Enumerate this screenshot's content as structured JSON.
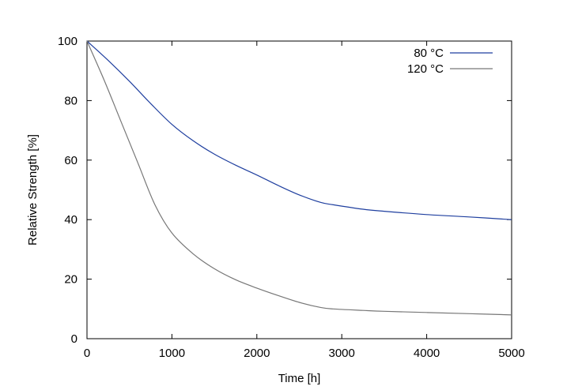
{
  "chart_data": {
    "type": "line",
    "title": "",
    "xlabel": "Time [h]",
    "ylabel": "Relative Strength [%]",
    "xlim": [
      0,
      5000
    ],
    "ylim": [
      0,
      100
    ],
    "xticks": [
      0,
      1000,
      2000,
      3000,
      4000,
      5000
    ],
    "yticks": [
      0,
      20,
      40,
      60,
      80,
      100
    ],
    "grid": false,
    "legend_position": "top-right",
    "series": [
      {
        "name": "80 °C",
        "color": "#1f3f9f",
        "x": [
          0,
          250,
          500,
          750,
          1000,
          1250,
          1500,
          1750,
          2000,
          2250,
          2500,
          2750,
          2900,
          3250,
          3500,
          4000,
          4500,
          5000
        ],
        "y": [
          100,
          93.5,
          86.5,
          79,
          72,
          66.5,
          62,
          58.3,
          55,
          51.5,
          48.3,
          45.8,
          45,
          43.5,
          42.8,
          41.7,
          40.9,
          40
        ]
      },
      {
        "name": "120 °C",
        "color": "#777777",
        "x": [
          0,
          200,
          400,
          600,
          800,
          1000,
          1250,
          1500,
          1750,
          2000,
          2250,
          2500,
          2750,
          2900,
          3250,
          3500,
          4000,
          4500,
          5000
        ],
        "y": [
          100,
          87,
          73,
          59,
          45,
          35.5,
          28.5,
          23.5,
          19.8,
          17,
          14.5,
          12.2,
          10.5,
          10,
          9.5,
          9.2,
          8.8,
          8.4,
          8
        ]
      }
    ]
  }
}
